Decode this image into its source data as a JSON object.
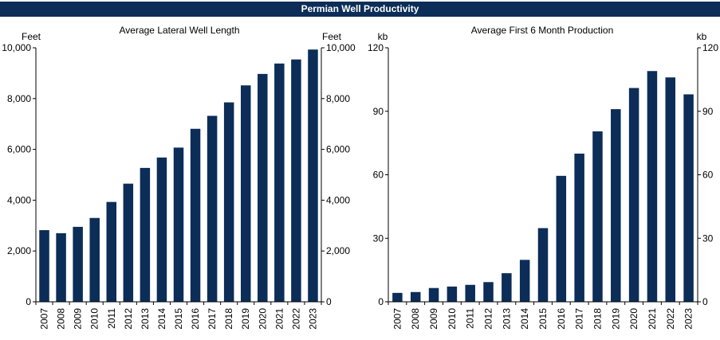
{
  "banner": {
    "title": "Permian Well Productivity"
  },
  "colors": {
    "bar": "#0b2d57",
    "banner_bg": "#0b2d57",
    "banner_text": "#ffffff",
    "axis": "#000000"
  },
  "chart_data": [
    {
      "type": "bar",
      "title": "Average Lateral Well Length",
      "ylabel_left": "Feet",
      "ylabel_right": "Feet",
      "categories": [
        "2007",
        "2008",
        "2009",
        "2010",
        "2011",
        "2012",
        "2013",
        "2014",
        "2015",
        "2016",
        "2017",
        "2018",
        "2019",
        "2020",
        "2021",
        "2022",
        "2023"
      ],
      "values": [
        2820,
        2700,
        2950,
        3300,
        3930,
        4650,
        5270,
        5680,
        6070,
        6810,
        7320,
        7850,
        8520,
        8970,
        9380,
        9540,
        9930
      ],
      "ylim": [
        0,
        10000
      ],
      "yticks": [
        0,
        2000,
        4000,
        6000,
        8000,
        10000
      ],
      "ytick_labels": [
        "0",
        "2,000",
        "4,000",
        "6,000",
        "8,000",
        "10,000"
      ],
      "grid": false
    },
    {
      "type": "bar",
      "title": "Average First 6 Month Production",
      "ylabel_left": "kb",
      "ylabel_right": "kb",
      "categories": [
        "2007",
        "2008",
        "2009",
        "2010",
        "2011",
        "2012",
        "2013",
        "2014",
        "2015",
        "2016",
        "2017",
        "2018",
        "2019",
        "2020",
        "2021",
        "2022",
        "2023"
      ],
      "values": [
        4.2,
        4.6,
        6.5,
        7.2,
        8.0,
        9.3,
        13.5,
        19.8,
        34.8,
        59.5,
        70.0,
        80.5,
        91.0,
        101.0,
        109.0,
        106.0,
        98.0
      ],
      "ylim": [
        0,
        120
      ],
      "yticks": [
        0,
        30,
        60,
        90,
        120
      ],
      "ytick_labels": [
        "0",
        "30",
        "60",
        "90",
        "120"
      ],
      "grid": false
    }
  ]
}
